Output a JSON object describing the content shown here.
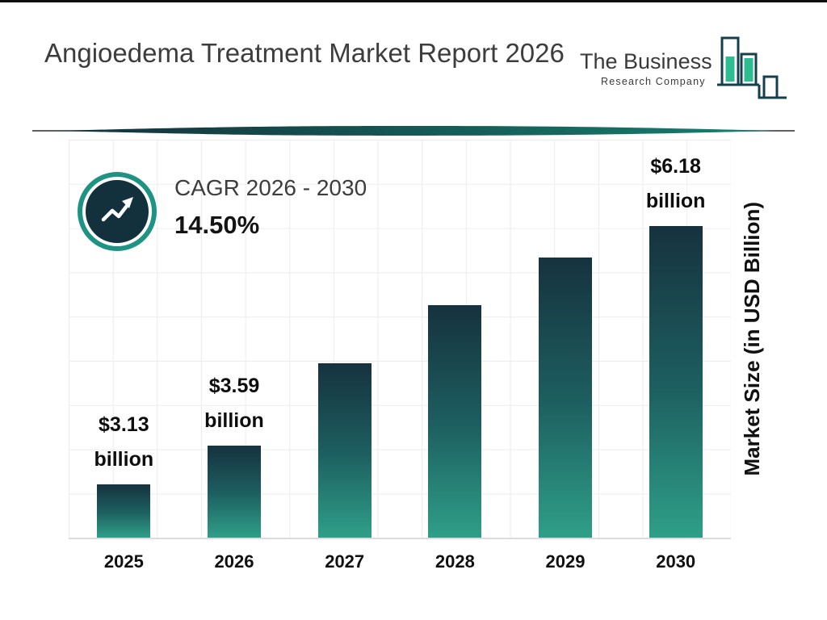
{
  "page": {
    "title": "Angioedema Treatment Market Report 2026"
  },
  "logo": {
    "line1": "The Business",
    "line2": "Research Company"
  },
  "cagr": {
    "label": "CAGR 2026 - 2030",
    "value": "14.50%"
  },
  "chart_data": {
    "type": "bar",
    "title": "Angioedema Treatment Market Report 2026",
    "xlabel": "",
    "ylabel": "Market Size (in USD Billion)",
    "categories": [
      "2025",
      "2026",
      "2027",
      "2028",
      "2029",
      "2030"
    ],
    "values": [
      3.13,
      3.59,
      4.56,
      5.25,
      5.81,
      6.18
    ],
    "ylim": [
      2.5,
      7.2
    ],
    "grid": true,
    "legend_position": "none",
    "bars": [
      {
        "year": "2025",
        "value": 3.13,
        "label_value": "$3.13",
        "label_unit": "billion"
      },
      {
        "year": "2026",
        "value": 3.59,
        "label_value": "$3.59",
        "label_unit": "billion"
      },
      {
        "year": "2027",
        "value": 4.56
      },
      {
        "year": "2028",
        "value": 5.25
      },
      {
        "year": "2029",
        "value": 5.81
      },
      {
        "year": "2030",
        "value": 6.18,
        "label_value": "$6.18",
        "label_unit": "billion"
      }
    ],
    "colors": {
      "bar_top": "#16323f",
      "bar_bottom": "#2f9f88",
      "accent_teal": "#1e9384",
      "grid": "#ececec"
    }
  }
}
